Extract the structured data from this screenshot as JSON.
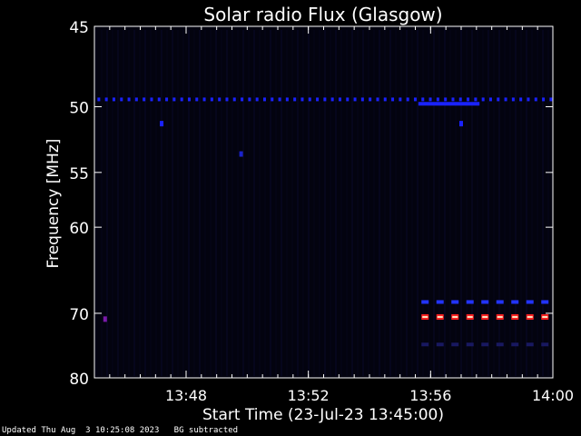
{
  "chart_data": {
    "type": "heatmap",
    "title": "Solar radio Flux (Glasgow)",
    "xlabel": "Start Time (23-Jul-23 13:45:00)",
    "ylabel": "Frequency [MHz]",
    "x_unit": "minutes after 13:45:00",
    "xlim": [
      0,
      15
    ],
    "ylim": [
      45,
      80
    ],
    "x_ticks": [
      {
        "value": 3,
        "label": "13:48"
      },
      {
        "value": 7,
        "label": "13:52"
      },
      {
        "value": 11,
        "label": "13:56"
      },
      {
        "value": 15,
        "label": "14:00"
      }
    ],
    "y_ticks": [
      {
        "value": 45,
        "label": "45"
      },
      {
        "value": 50,
        "label": "50"
      },
      {
        "value": 55,
        "label": "55"
      },
      {
        "value": 60,
        "label": "60"
      },
      {
        "value": 70,
        "label": "70"
      },
      {
        "value": 80,
        "label": "80"
      }
    ],
    "features": [
      {
        "kind": "dashed-band",
        "freq": 49.5,
        "t_start": 0.1,
        "t_end": 15,
        "color": "#1a22ff"
      },
      {
        "kind": "solid-band",
        "freq": 49.8,
        "t_start": 10.6,
        "t_end": 12.6,
        "color": "#1a22ff"
      },
      {
        "kind": "dashed-band",
        "freq": 68.5,
        "t_start": 10.7,
        "t_end": 15,
        "color": "#2233ff"
      },
      {
        "kind": "dashed-band-hot",
        "freq": 70.5,
        "t_start": 10.7,
        "t_end": 15,
        "color": "#ff2020"
      },
      {
        "kind": "dashed-band",
        "freq": 74.5,
        "t_start": 10.7,
        "t_end": 15,
        "color": "#181860"
      },
      {
        "kind": "spot",
        "freq": 70.8,
        "t": 0.35,
        "color": "#7a1aaa"
      },
      {
        "kind": "spot",
        "freq": 51.2,
        "t": 2.2,
        "color": "#1a22ff"
      },
      {
        "kind": "spot",
        "freq": 51.2,
        "t": 12.0,
        "color": "#1a22ff"
      },
      {
        "kind": "spot",
        "freq": 53.5,
        "t": 4.8,
        "color": "#1a22cc"
      }
    ]
  },
  "footer": {
    "text": "Updated Thu Aug  3 10:25:08 2023   BG subtracted"
  }
}
